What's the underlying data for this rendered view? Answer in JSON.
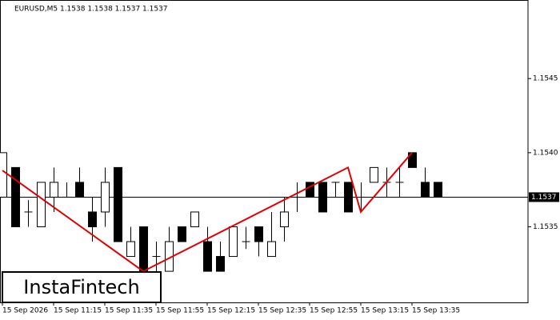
{
  "chart_data": {
    "type": "candlestick",
    "title": "EURUSD,M5  1.1538 1.1538 1.1537 1.1537",
    "categories": [
      "15 Sep 2026",
      null,
      null,
      null,
      "15 Sep 11:15",
      null,
      null,
      null,
      "15 Sep 11:35",
      null,
      null,
      null,
      "15 Sep 11:55",
      null,
      null,
      null,
      "15 Sep 12:15",
      null,
      null,
      null,
      "15 Sep 12:35",
      null,
      null,
      null,
      "15 Sep 12:55",
      null,
      null,
      null,
      "15 Sep 13:15",
      null,
      null,
      null,
      "15 Sep 13:35",
      null,
      null
    ],
    "open": [
      1.1537,
      1.1539,
      1.1536,
      1.1535,
      1.1537,
      1.1537,
      1.1538,
      1.1536,
      1.1536,
      1.1539,
      1.1533,
      1.1535,
      1.1533,
      1.1532,
      1.1535,
      1.1535,
      1.1534,
      1.1533,
      1.1533,
      1.1534,
      1.1535,
      1.1533,
      1.1535,
      1.1537,
      1.1538,
      1.1538,
      1.1538,
      1.1538,
      1.1537,
      1.1538,
      1.1538,
      1.1538,
      1.154,
      1.1538,
      1.1538
    ],
    "high": [
      1.154,
      1.1539,
      1.15368,
      1.1538,
      1.1539,
      1.1538,
      1.1539,
      1.1537,
      1.1539,
      1.1539,
      1.1535,
      1.1535,
      1.1534,
      1.1535,
      1.1535,
      1.1536,
      1.1535,
      1.1534,
      1.1535,
      1.1535,
      1.1535,
      1.1536,
      1.1537,
      1.1538,
      1.1538,
      1.1538,
      1.1538,
      1.1538,
      1.1538,
      1.1539,
      1.1539,
      1.1539,
      1.154,
      1.1539,
      1.1538
    ],
    "low": [
      1.1537,
      1.1535,
      1.1535,
      1.1535,
      1.1536,
      1.1537,
      1.1537,
      1.1534,
      1.1535,
      1.1534,
      1.1533,
      1.1532,
      1.1532,
      1.1532,
      1.1534,
      1.1535,
      1.1532,
      1.1532,
      1.1533,
      1.15335,
      1.1533,
      1.1533,
      1.1534,
      1.1536,
      1.1537,
      1.1536,
      1.1537,
      1.1536,
      1.1536,
      1.1538,
      1.1537,
      1.1537,
      1.1539,
      1.1537,
      1.1537
    ],
    "close": [
      1.154,
      1.1535,
      1.1536,
      1.1538,
      1.1538,
      1.1537,
      1.1537,
      1.1535,
      1.1538,
      1.1534,
      1.1534,
      1.1532,
      1.1533,
      1.1534,
      1.1534,
      1.1536,
      1.1532,
      1.1532,
      1.1535,
      1.1534,
      1.1534,
      1.1534,
      1.1536,
      1.1537,
      1.1537,
      1.1536,
      1.1538,
      1.1536,
      1.1537,
      1.1539,
      1.1538,
      1.1538,
      1.1539,
      1.1537,
      1.1537
    ],
    "pattern": {
      "color": "#e00000",
      "index": [
        0,
        11,
        27,
        28,
        32
      ],
      "values": [
        1.15388,
        1.1532,
        1.1539,
        1.1536,
        1.154
      ]
    },
    "current_price": 1.1537,
    "ylim": [
      1.15299,
      1.15503
    ],
    "yticks": [
      1.1535,
      {
        "value": 1.154,
        "label": "1.1540"
      },
      1.1545
    ],
    "logo": "InstaFintech"
  }
}
